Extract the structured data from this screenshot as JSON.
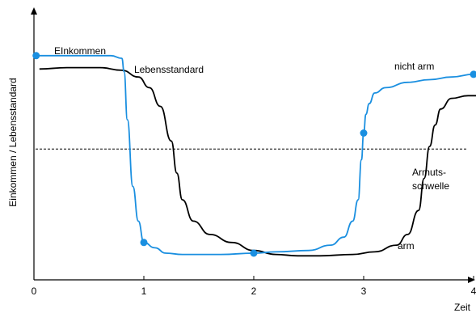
{
  "chart_data": {
    "type": "line",
    "title": "",
    "xlabel": "Zeit",
    "ylabel": "Einkommen / Lebensstandard",
    "xlim": [
      0,
      4.35
    ],
    "ylim": [
      0,
      100
    ],
    "x_ticks": [
      "0",
      "1",
      "2",
      "3",
      "4"
    ],
    "y_ticks": [],
    "grid": false,
    "legend": "none",
    "colors": {
      "einkommen": "#1a8fe0",
      "lebensstandard": "#000000",
      "axis": "#000000",
      "threshold": "#000000"
    },
    "series": [
      {
        "name": "EInkommen",
        "color": "#1a8fe0",
        "x": [
          0.02,
          0.7,
          0.8,
          0.82,
          0.85,
          0.9,
          0.95,
          1.0,
          1.1,
          1.2,
          1.35,
          1.7,
          2.0,
          2.2,
          2.5,
          2.7,
          2.82,
          2.9,
          2.95,
          2.98,
          3.0,
          3.02,
          3.05,
          3.1,
          3.2,
          3.4,
          3.6,
          3.8,
          4.0,
          4.2,
          4.35
        ],
        "y": [
          84,
          84,
          83,
          78,
          60,
          35,
          22,
          14,
          12,
          10,
          9.5,
          9.5,
          10,
          10.5,
          11,
          13,
          16,
          22,
          30,
          45,
          55,
          62,
          66,
          70,
          72,
          74,
          75,
          76,
          77,
          78,
          78
        ]
      },
      {
        "name": "Lebensstandard",
        "color": "#000000",
        "x": [
          0.05,
          0.3,
          0.6,
          0.8,
          0.95,
          1.05,
          1.15,
          1.25,
          1.3,
          1.35,
          1.45,
          1.6,
          1.8,
          2.0,
          2.2,
          2.4,
          2.6,
          2.9,
          3.1,
          3.3,
          3.4,
          3.5,
          3.55,
          3.6,
          3.65,
          3.7,
          3.8,
          3.95,
          4.1,
          4.35
        ],
        "y": [
          79,
          79.5,
          79.5,
          78.5,
          76,
          72,
          65,
          52,
          40,
          30,
          22,
          17,
          14,
          11,
          9.5,
          9,
          9,
          9.5,
          10.5,
          13,
          17,
          26,
          38,
          50,
          58,
          64,
          68,
          69,
          69,
          70
        ]
      }
    ],
    "markers": [
      {
        "series": "EInkommen",
        "x": 0.02,
        "y": 84
      },
      {
        "series": "EInkommen",
        "x": 1.0,
        "y": 14
      },
      {
        "series": "EInkommen",
        "x": 2.0,
        "y": 10
      },
      {
        "series": "EInkommen",
        "x": 3.0,
        "y": 55
      },
      {
        "series": "EInkommen",
        "x": 4.0,
        "y": 77
      }
    ],
    "threshold": {
      "y": 49,
      "label_line1": "Armuts-",
      "label_line2": "schwelle"
    },
    "annotations": {
      "einkommen": "EInkommen",
      "lebensstandard": "Lebensstandard",
      "nicht_arm": "nicht arm",
      "arm": "arm"
    }
  }
}
